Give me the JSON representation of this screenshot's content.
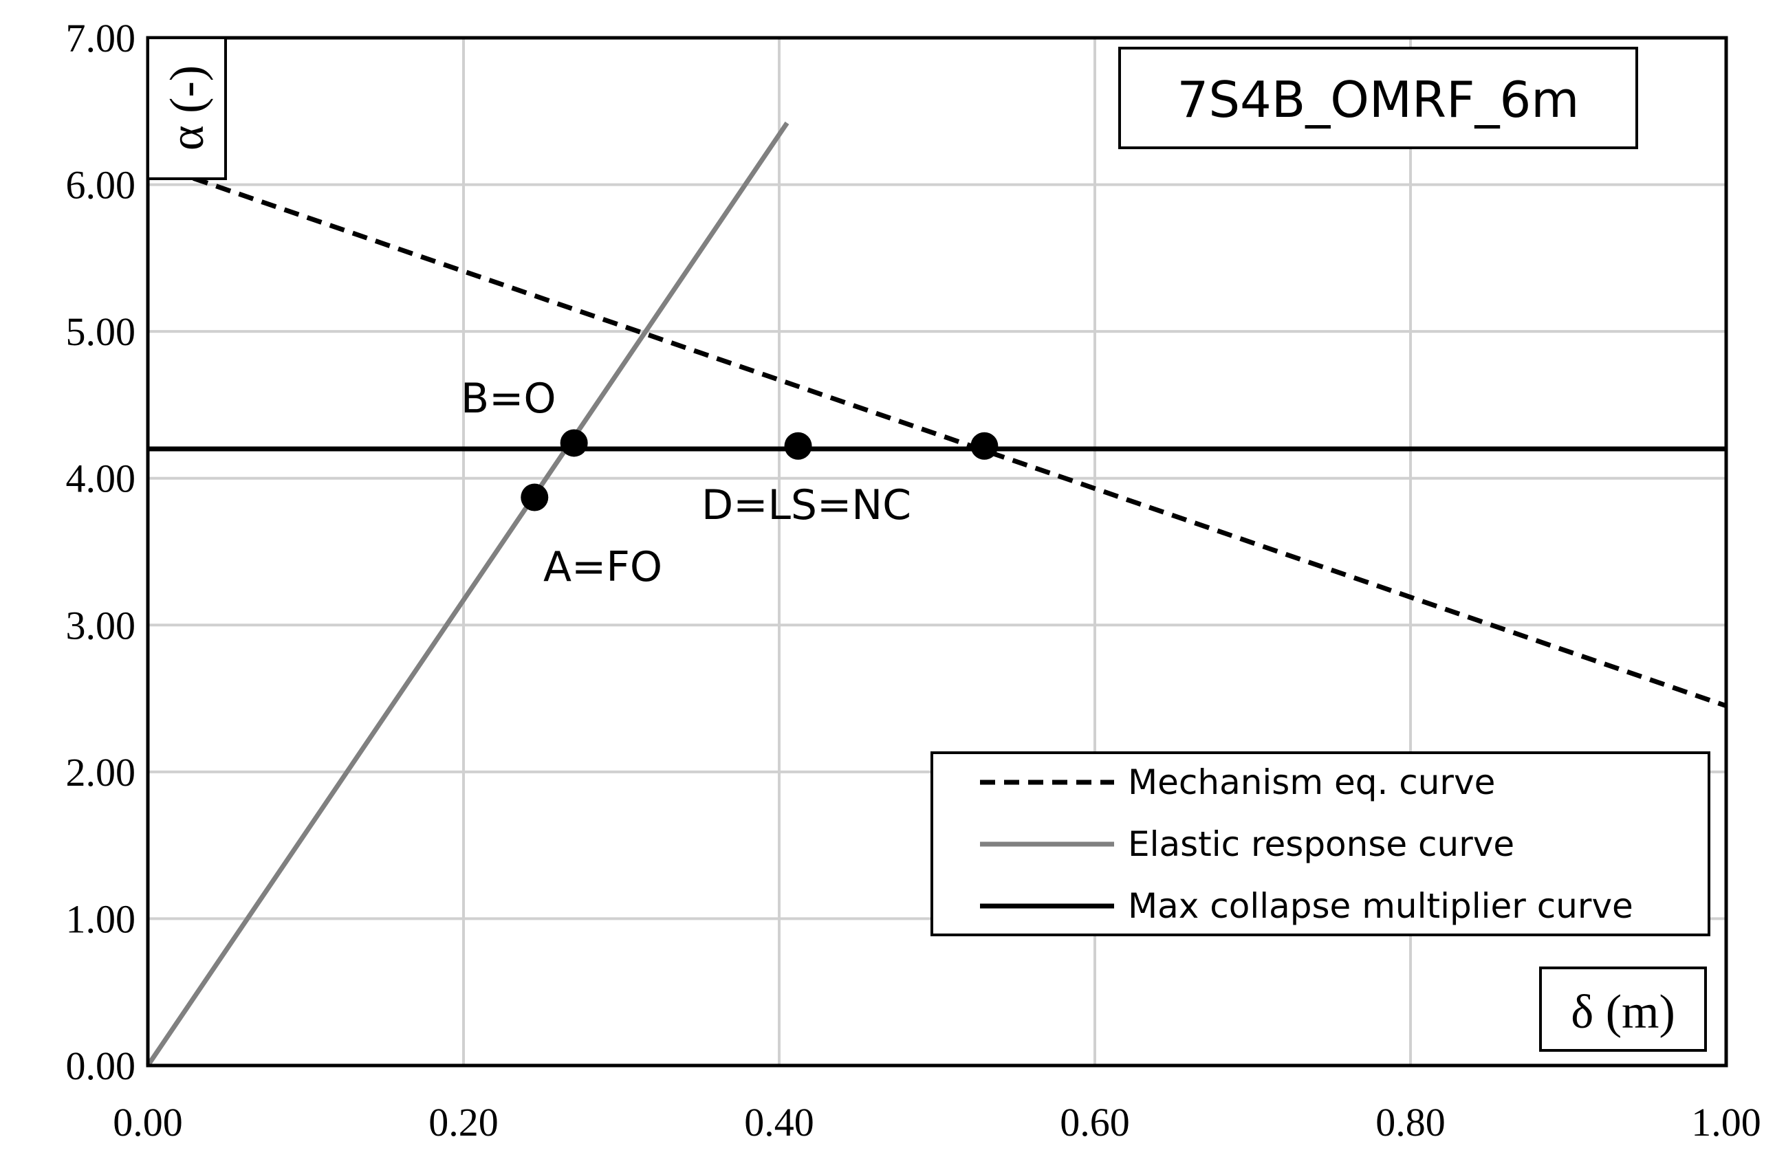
{
  "chart_data": {
    "type": "line",
    "title": "7S4B_OMRF_6m",
    "xlabel": "δ (m)",
    "ylabel": "α (-)",
    "xlim": [
      0,
      1
    ],
    "ylim": [
      0,
      7
    ],
    "x_ticks": [
      "0.00",
      "0.20",
      "0.40",
      "0.60",
      "0.80",
      "1.00"
    ],
    "y_ticks": [
      "0.00",
      "1.00",
      "2.00",
      "3.00",
      "4.00",
      "5.00",
      "6.00",
      "7.00"
    ],
    "grid": true,
    "legend_position": "bottom-right",
    "series": [
      {
        "name": "Mechanism eq. curve",
        "style": "dashed",
        "color": "#000000",
        "x": [
          0.0,
          1.0
        ],
        "y": [
          6.15,
          2.45
        ]
      },
      {
        "name": "Elastic response curve",
        "style": "solid",
        "color": "#808080",
        "x": [
          0.0,
          0.405
        ],
        "y": [
          0.0,
          6.42
        ]
      },
      {
        "name": "Max collapse multiplier curve",
        "style": "solid",
        "color": "#000000",
        "x": [
          0.0,
          1.0
        ],
        "y": [
          4.2,
          4.2
        ]
      }
    ],
    "points": [
      {
        "label": "A=FO",
        "x": 0.245,
        "y": 3.87
      },
      {
        "label": "B=O",
        "x": 0.27,
        "y": 4.24
      },
      {
        "label": "D=LS=NC",
        "x": 0.412,
        "y": 4.22
      },
      {
        "label": "",
        "x": 0.53,
        "y": 4.22
      }
    ]
  }
}
